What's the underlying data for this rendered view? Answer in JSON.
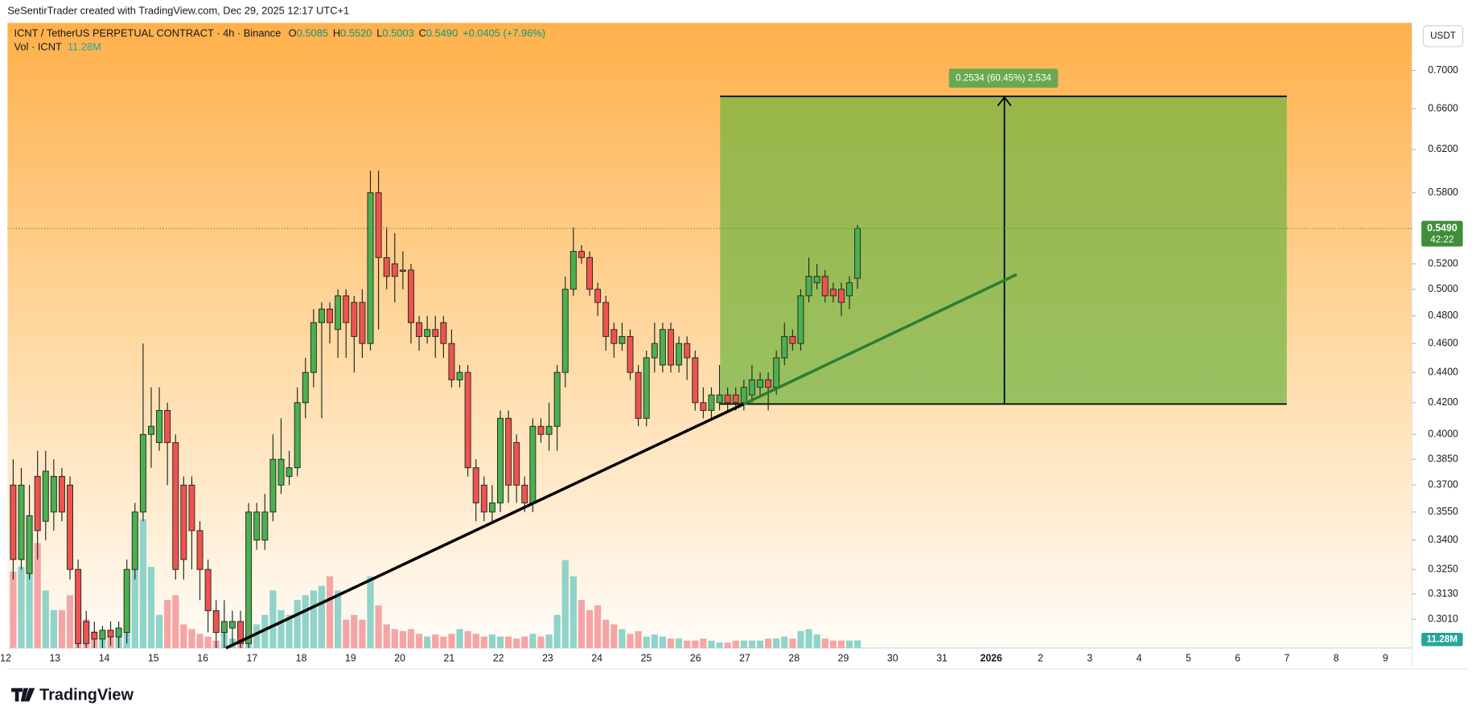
{
  "header": "SeSentirTrader created with TradingView.com, Dec 29, 2025 12:17 UTC+1",
  "footer": "TradingView",
  "chart_data": {
    "type": "candlestick",
    "title": "ICNT / TetherUS PERPETUAL CONTRACT · 4h · Binance",
    "ohlc_legend": [
      {
        "label": "O",
        "value": "0.5085"
      },
      {
        "label": "H",
        "value": "0.5520"
      },
      {
        "label": "L",
        "value": "0.5003"
      },
      {
        "label": "C",
        "value": "0.5490"
      }
    ],
    "change": "+0.0405 (+7.96%)",
    "volume_legend": {
      "name": "Vol · ICNT",
      "value": "11.28M"
    },
    "currency": "USDT",
    "position_label": "0.2534 (60.45%) 2,534",
    "last_price": {
      "value": 0.549,
      "label": "0.5490",
      "countdown": "42:22"
    },
    "last_volume": {
      "value": 11.28,
      "label": "11.28M"
    },
    "log_scale": true,
    "up_color": "#4caf50",
    "down_color": "#ef5350",
    "up_volume_color": "#8fd3c9",
    "down_volume_color": "#f5a5a5",
    "ylim": [
      0.288,
      0.752
    ],
    "yticks": [
      {
        "value": 0.7,
        "label": "0.7000"
      },
      {
        "value": 0.66,
        "label": "0.6600"
      },
      {
        "value": 0.62,
        "label": "0.6200"
      },
      {
        "value": 0.58,
        "label": "0.5800"
      },
      {
        "value": 0.52,
        "label": "0.5200"
      },
      {
        "value": 0.5,
        "label": "0.5000"
      },
      {
        "value": 0.48,
        "label": "0.4800"
      },
      {
        "value": 0.46,
        "label": "0.4600"
      },
      {
        "value": 0.44,
        "label": "0.4400"
      },
      {
        "value": 0.42,
        "label": "0.4200"
      },
      {
        "value": 0.4,
        "label": "0.4000"
      },
      {
        "value": 0.385,
        "label": "0.3850"
      },
      {
        "value": 0.37,
        "label": "0.3700"
      },
      {
        "value": 0.355,
        "label": "0.3550"
      },
      {
        "value": 0.34,
        "label": "0.3400"
      },
      {
        "value": 0.325,
        "label": "0.3250"
      },
      {
        "value": 0.313,
        "label": "0.3130"
      },
      {
        "value": 0.301,
        "label": "0.3010"
      }
    ],
    "xticks": [
      "12",
      "13",
      "14",
      "15",
      "16",
      "17",
      "18",
      "19",
      "20",
      "21",
      "22",
      "23",
      "24",
      "25",
      "26",
      "27",
      "28",
      "29",
      "30",
      "31",
      "2026",
      "2",
      "3",
      "4",
      "5",
      "6",
      "7",
      "8",
      "9"
    ],
    "open": [
      0.37,
      0.33,
      0.323,
      0.375,
      0.35,
      0.355,
      0.375,
      0.37,
      0.325,
      0.3,
      0.295,
      0.292,
      0.296,
      0.293,
      0.295,
      0.325,
      0.355,
      0.4,
      0.395,
      0.415,
      0.395,
      0.37,
      0.37,
      0.345,
      0.325,
      0.305,
      0.295,
      0.297,
      0.3,
      0.29,
      0.34,
      0.34,
      0.355,
      0.37,
      0.375,
      0.38,
      0.42,
      0.44,
      0.475,
      0.485,
      0.47,
      0.495,
      0.49,
      0.49,
      0.46,
      0.58,
      0.525,
      0.52,
      0.515,
      0.515,
      0.475,
      0.465,
      0.47,
      0.475,
      0.46,
      0.435,
      0.44,
      0.38,
      0.37,
      0.355,
      0.36,
      0.41,
      0.395,
      0.37,
      0.36,
      0.405,
      0.4,
      0.405,
      0.44,
      0.5,
      0.53,
      0.525,
      0.5,
      0.49,
      0.47,
      0.46,
      0.465,
      0.44,
      0.41,
      0.45,
      0.445,
      0.47,
      0.445,
      0.46,
      0.45,
      0.42,
      0.415,
      0.42,
      0.425,
      0.425,
      0.42,
      0.425,
      0.43,
      0.435,
      0.43,
      0.45,
      0.465,
      0.46,
      0.495,
      0.505,
      0.51,
      0.5,
      0.5,
      0.495,
      0.5085
    ],
    "high": [
      0.385,
      0.38,
      0.37,
      0.39,
      0.39,
      0.385,
      0.38,
      0.375,
      0.33,
      0.305,
      0.3,
      0.298,
      0.3,
      0.3,
      0.33,
      0.36,
      0.46,
      0.43,
      0.43,
      0.42,
      0.4,
      0.375,
      0.375,
      0.35,
      0.33,
      0.31,
      0.31,
      0.305,
      0.305,
      0.36,
      0.36,
      0.365,
      0.4,
      0.41,
      0.39,
      0.43,
      0.45,
      0.485,
      0.49,
      0.49,
      0.5,
      0.5,
      0.495,
      0.5,
      0.6,
      0.6,
      0.55,
      0.545,
      0.53,
      0.52,
      0.48,
      0.48,
      0.48,
      0.48,
      0.47,
      0.445,
      0.445,
      0.385,
      0.375,
      0.37,
      0.415,
      0.415,
      0.4,
      0.375,
      0.41,
      0.41,
      0.42,
      0.445,
      0.51,
      0.55,
      0.535,
      0.53,
      0.505,
      0.495,
      0.475,
      0.475,
      0.47,
      0.445,
      0.455,
      0.475,
      0.475,
      0.475,
      0.465,
      0.465,
      0.455,
      0.43,
      0.43,
      0.445,
      0.43,
      0.43,
      0.435,
      0.445,
      0.44,
      0.44,
      0.455,
      0.475,
      0.47,
      0.5,
      0.525,
      0.52,
      0.515,
      0.505,
      0.505,
      0.51,
      0.552
    ],
    "low": [
      0.32,
      0.325,
      0.32,
      0.33,
      0.34,
      0.345,
      0.35,
      0.32,
      0.288,
      0.288,
      0.288,
      0.288,
      0.289,
      0.288,
      0.29,
      0.32,
      0.35,
      0.38,
      0.39,
      0.37,
      0.32,
      0.32,
      0.325,
      0.31,
      0.295,
      0.288,
      0.288,
      0.29,
      0.288,
      0.288,
      0.335,
      0.335,
      0.35,
      0.365,
      0.37,
      0.375,
      0.41,
      0.43,
      0.41,
      0.46,
      0.45,
      0.45,
      0.44,
      0.45,
      0.455,
      0.47,
      0.5,
      0.49,
      0.5,
      0.46,
      0.455,
      0.46,
      0.45,
      0.45,
      0.43,
      0.43,
      0.375,
      0.35,
      0.35,
      0.35,
      0.355,
      0.36,
      0.36,
      0.355,
      0.355,
      0.395,
      0.39,
      0.39,
      0.43,
      0.495,
      0.52,
      0.495,
      0.48,
      0.455,
      0.45,
      0.455,
      0.435,
      0.405,
      0.405,
      0.44,
      0.44,
      0.44,
      0.44,
      0.435,
      0.415,
      0.41,
      0.41,
      0.415,
      0.415,
      0.415,
      0.415,
      0.42,
      0.425,
      0.415,
      0.425,
      0.445,
      0.455,
      0.455,
      0.49,
      0.5,
      0.49,
      0.49,
      0.48,
      0.485,
      0.5003
    ],
    "close": [
      0.33,
      0.37,
      0.353,
      0.345,
      0.378,
      0.375,
      0.355,
      0.325,
      0.29,
      0.29,
      0.292,
      0.296,
      0.293,
      0.297,
      0.325,
      0.355,
      0.4,
      0.405,
      0.415,
      0.395,
      0.325,
      0.33,
      0.345,
      0.325,
      0.305,
      0.295,
      0.3,
      0.3,
      0.29,
      0.355,
      0.355,
      0.355,
      0.385,
      0.385,
      0.38,
      0.42,
      0.44,
      0.475,
      0.485,
      0.475,
      0.495,
      0.475,
      0.465,
      0.46,
      0.58,
      0.525,
      0.51,
      0.51,
      0.514,
      0.475,
      0.465,
      0.47,
      0.465,
      0.46,
      0.435,
      0.44,
      0.38,
      0.36,
      0.355,
      0.36,
      0.41,
      0.37,
      0.37,
      0.36,
      0.405,
      0.4,
      0.405,
      0.44,
      0.5,
      0.53,
      0.525,
      0.5,
      0.49,
      0.465,
      0.46,
      0.465,
      0.44,
      0.41,
      0.45,
      0.46,
      0.47,
      0.445,
      0.46,
      0.45,
      0.42,
      0.415,
      0.425,
      0.425,
      0.42,
      0.42,
      0.43,
      0.435,
      0.435,
      0.43,
      0.45,
      0.465,
      0.46,
      0.495,
      0.51,
      0.51,
      0.495,
      0.495,
      0.49,
      0.505,
      0.549
    ],
    "volume": [
      113,
      120,
      169,
      155,
      85,
      56,
      56,
      78,
      63,
      42,
      25,
      21,
      17,
      28,
      106,
      183,
      190,
      120,
      49,
      71,
      78,
      35,
      28,
      21,
      17,
      11,
      28,
      14,
      17,
      21,
      35,
      49,
      85,
      56,
      49,
      71,
      78,
      85,
      92,
      106,
      85,
      42,
      49,
      42,
      106,
      63,
      35,
      28,
      25,
      28,
      21,
      17,
      20,
      17,
      21,
      28,
      25,
      21,
      17,
      20,
      17,
      17,
      14,
      17,
      21,
      17,
      20,
      49,
      130,
      106,
      71,
      56,
      63,
      42,
      35,
      28,
      21,
      25,
      17,
      20,
      17,
      14,
      14,
      11,
      11,
      14,
      11,
      8,
      8,
      11,
      11,
      11,
      11,
      14,
      14,
      17,
      14,
      25,
      28,
      20,
      14,
      11,
      11,
      11,
      11.28
    ]
  }
}
